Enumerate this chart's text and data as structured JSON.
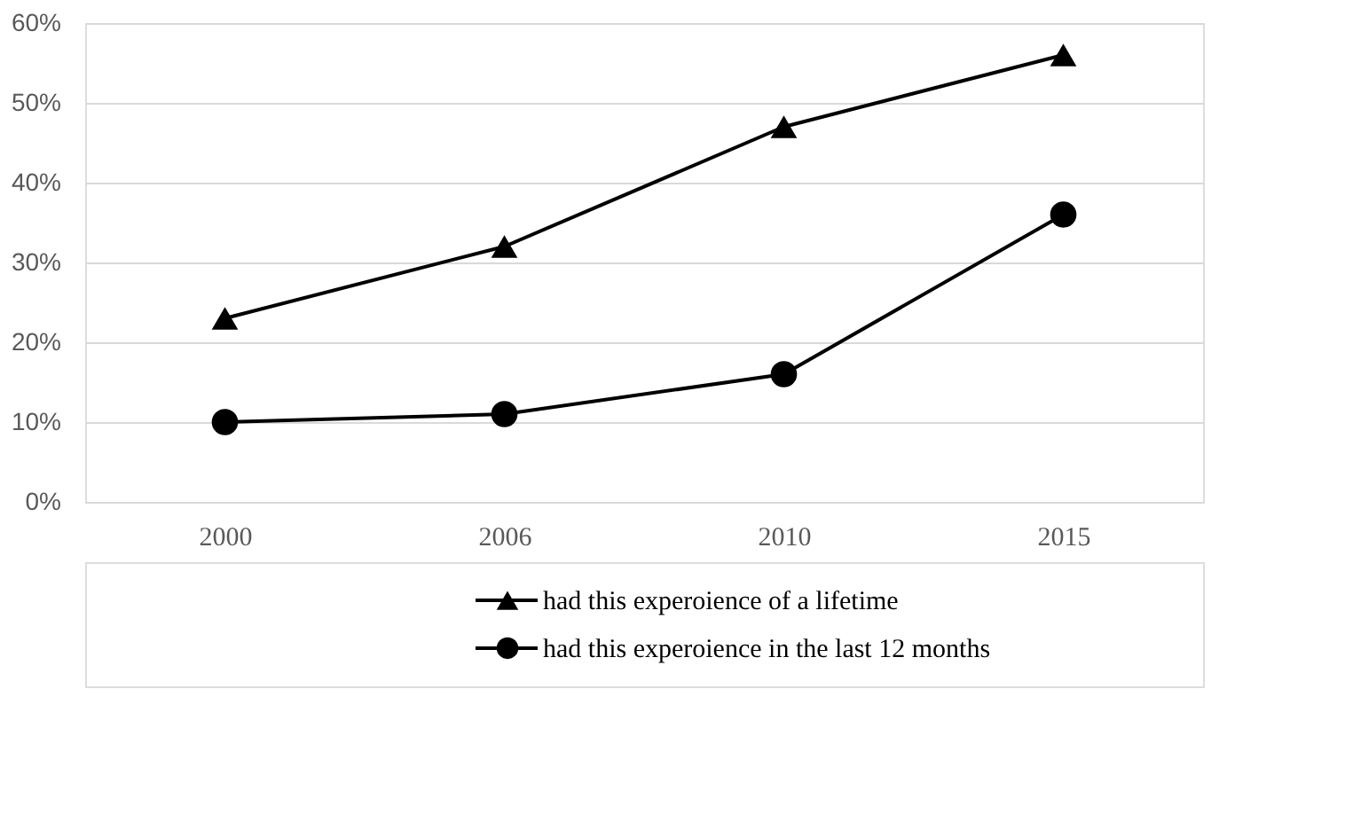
{
  "chart_data": {
    "type": "line",
    "categories": [
      "2000",
      "2006",
      "2010",
      "2015"
    ],
    "series": [
      {
        "name": "had this experoience  of a lifetime",
        "color": "#000000",
        "values": [
          23,
          32,
          47,
          56
        ],
        "marker": "triangle"
      },
      {
        "name": "had this experoience in the last 12 months",
        "color": "#000000",
        "values": [
          10,
          11,
          16,
          36
        ],
        "marker": "circle"
      }
    ],
    "ylim": [
      0,
      60
    ],
    "yticks": [
      {
        "value": 0,
        "label": "0%"
      },
      {
        "value": 10,
        "label": "10%"
      },
      {
        "value": 20,
        "label": "20%"
      },
      {
        "value": 30,
        "label": "30%"
      },
      {
        "value": 40,
        "label": "40%"
      },
      {
        "value": 50,
        "label": "50%"
      },
      {
        "value": 60,
        "label": "60%"
      }
    ],
    "grid": "y",
    "legend": "bottom",
    "line_style": "solid"
  }
}
